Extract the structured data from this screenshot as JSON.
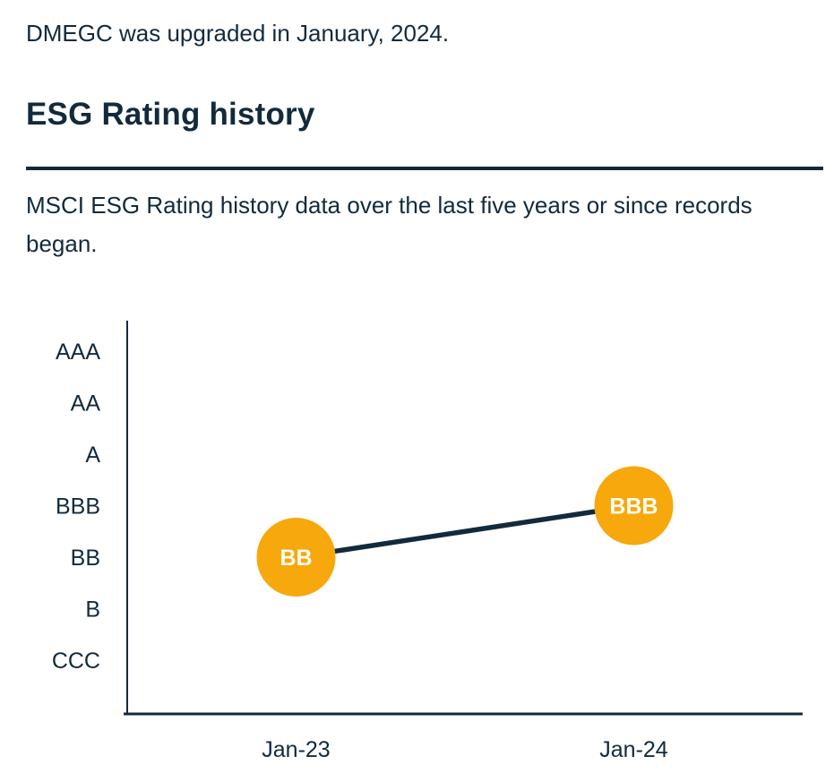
{
  "page": {
    "background_color": "#ffffff",
    "text_color": "#122a3c"
  },
  "intro": {
    "text": "DMEGC was upgraded in January, 2024."
  },
  "section": {
    "title": "ESG Rating history",
    "description": "MSCI ESG Rating history data over the last five years or since records began."
  },
  "chart_data": {
    "type": "line",
    "title": "",
    "xlabel": "",
    "ylabel": "",
    "categories": [
      "Jan-23",
      "Jan-24"
    ],
    "values": [
      "BB",
      "BBB"
    ],
    "series": [
      {
        "name": "ESG Rating",
        "values": [
          "BB",
          "BBB"
        ]
      }
    ],
    "rating_scale_top_to_bottom": [
      "AAA",
      "AA",
      "A",
      "BBB",
      "BB",
      "B",
      "CCC"
    ],
    "grid": false,
    "legend": "none",
    "marker_color": "#f7a80d",
    "marker_label_color": "#fffdf4",
    "line_color": "#122a3c",
    "axis_color": "#122a3c"
  }
}
